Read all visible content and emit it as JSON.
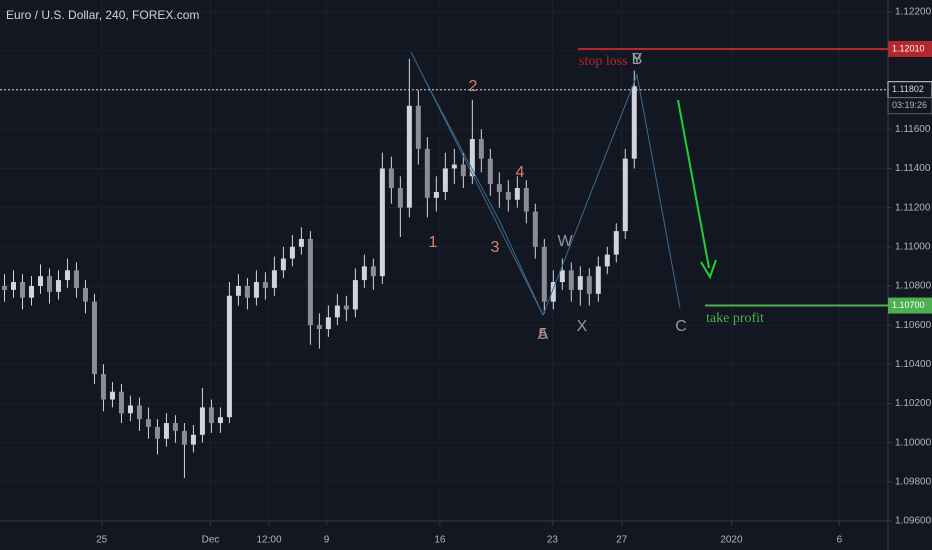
{
  "chart_data": {
    "type": "candlestick",
    "title": "Euro / U.S. Dollar, 240, FOREX.com",
    "color": "#d1d4dc",
    "open": [
      1.108,
      1.1078,
      1.1082,
      1.1074,
      1.108,
      1.1085,
      1.1077,
      1.1083,
      1.1088,
      1.1079,
      1.1072,
      1.1035,
      1.1022,
      1.1026,
      1.1015,
      1.1019,
      1.1012,
      1.1008,
      1.1002,
      1.101,
      1.1006,
      1.0999,
      1.1004,
      1.1018,
      1.101,
      1.1013,
      1.1075,
      1.108,
      1.1074,
      1.1082,
      1.1079,
      1.1088,
      1.1094,
      1.11,
      1.1104,
      1.106,
      1.1058,
      1.1064,
      1.107,
      1.1068,
      1.1083,
      1.109,
      1.1085,
      1.114,
      1.113,
      1.112,
      1.1172,
      1.115,
      1.1125,
      1.1128,
      1.114,
      1.1142,
      1.1136,
      1.1155,
      1.1145,
      1.1132,
      1.1128,
      1.1124,
      1.113,
      1.1118,
      1.11,
      1.1072,
      1.1082,
      1.1088,
      1.1078,
      1.1085,
      1.1076,
      1.109,
      1.1096,
      1.1108,
      1.1145
    ],
    "high": [
      1.1086,
      1.1088,
      1.1086,
      1.1085,
      1.1091,
      1.1089,
      1.1088,
      1.1094,
      1.1092,
      1.1083,
      1.1076,
      1.104,
      1.1031,
      1.103,
      1.1024,
      1.1023,
      1.1018,
      1.1012,
      1.1015,
      1.1014,
      1.101,
      1.1009,
      1.1028,
      1.1022,
      1.1018,
      1.1082,
      1.1086,
      1.1084,
      1.1088,
      1.1087,
      1.1095,
      1.11,
      1.1106,
      1.111,
      1.1108,
      1.1066,
      1.107,
      1.1076,
      1.1075,
      1.1089,
      1.1096,
      1.1094,
      1.1148,
      1.1146,
      1.1136,
      1.1196,
      1.118,
      1.1156,
      1.1136,
      1.1148,
      1.115,
      1.1148,
      1.1175,
      1.116,
      1.115,
      1.1138,
      1.1134,
      1.1136,
      1.1134,
      1.1122,
      1.1104,
      1.1088,
      1.1094,
      1.1092,
      1.109,
      1.1089,
      1.1095,
      1.11,
      1.1112,
      1.115,
      1.119
    ],
    "low": [
      1.1072,
      1.1074,
      1.1068,
      1.107,
      1.1076,
      1.1071,
      1.1073,
      1.1079,
      1.1074,
      1.1066,
      1.103,
      1.1016,
      1.1018,
      1.101,
      1.1011,
      1.1006,
      1.1002,
      1.0994,
      1.0998,
      1.1,
      1.0982,
      1.0995,
      1.1,
      1.1005,
      1.1005,
      1.101,
      1.107,
      1.1068,
      1.107,
      1.1073,
      1.1075,
      1.1084,
      1.109,
      1.1096,
      1.105,
      1.1048,
      1.1054,
      1.106,
      1.1062,
      1.1064,
      1.1079,
      1.1078,
      1.1081,
      1.1122,
      1.1105,
      1.1115,
      1.1142,
      1.1115,
      1.1118,
      1.1124,
      1.1132,
      1.113,
      1.1132,
      1.1138,
      1.1126,
      1.112,
      1.1118,
      1.112,
      1.1112,
      1.1094,
      1.1066,
      1.1068,
      1.1078,
      1.1072,
      1.107,
      1.107,
      1.1072,
      1.1086,
      1.1092,
      1.1104,
      1.114
    ],
    "close": [
      1.1078,
      1.1082,
      1.1074,
      1.108,
      1.1085,
      1.1077,
      1.1083,
      1.1088,
      1.1079,
      1.1072,
      1.1035,
      1.1022,
      1.1026,
      1.1015,
      1.1019,
      1.1012,
      1.1008,
      1.1002,
      1.101,
      1.1006,
      1.0999,
      1.1004,
      1.1018,
      1.101,
      1.1013,
      1.1075,
      1.108,
      1.1074,
      1.1082,
      1.1079,
      1.1088,
      1.1094,
      1.11,
      1.1104,
      1.106,
      1.1058,
      1.1064,
      1.107,
      1.1068,
      1.1083,
      1.109,
      1.1085,
      1.114,
      1.113,
      1.112,
      1.1172,
      1.115,
      1.1125,
      1.1128,
      1.114,
      1.1142,
      1.1136,
      1.1155,
      1.1145,
      1.1132,
      1.1128,
      1.1124,
      1.113,
      1.1118,
      1.11,
      1.1072,
      1.1082,
      1.1088,
      1.1078,
      1.1085,
      1.1076,
      1.109,
      1.1096,
      1.1108,
      1.1145,
      1.1182
    ],
    "xlim": [
      -0.5,
      98.2
    ],
    "xticks": [
      {
        "value": 10.8,
        "label": "25"
      },
      {
        "value": 22.9,
        "label": "Dec"
      },
      {
        "value": 29.4,
        "label": "12:00"
      },
      {
        "value": 35.8,
        "label": "9"
      },
      {
        "value": 48.4,
        "label": "16"
      },
      {
        "value": 60.9,
        "label": "23"
      },
      {
        "value": 68.6,
        "label": "27"
      },
      {
        "value": 80.8,
        "label": "2020"
      },
      {
        "value": 92.8,
        "label": "6"
      }
    ],
    "ylim": [
      1.096,
      1.1226
    ],
    "yticks": [
      {
        "value": 1.122,
        "label": "1.12200"
      },
      {
        "value": 1.12,
        "label": "1.12000"
      },
      {
        "value": 1.118,
        "label": "1.11800"
      },
      {
        "value": 1.116,
        "label": "1.11600"
      },
      {
        "value": 1.114,
        "label": "1.11400"
      },
      {
        "value": 1.112,
        "label": "1.11200"
      },
      {
        "value": 1.11,
        "label": "1.11000"
      },
      {
        "value": 1.108,
        "label": "1.10800"
      },
      {
        "value": 1.106,
        "label": "1.10600"
      },
      {
        "value": 1.104,
        "label": "1.10400"
      },
      {
        "value": 1.102,
        "label": "1.10200"
      },
      {
        "value": 1.1,
        "label": "1.10000"
      },
      {
        "value": 1.098,
        "label": "1.09800"
      },
      {
        "value": 1.096,
        "label": "1.09600"
      }
    ],
    "grid": true,
    "levels": [
      {
        "name": "stop loss",
        "value": 1.1201,
        "label": "1.12010",
        "color": "#b2282e"
      },
      {
        "value": 1.11802,
        "label": "1.11802",
        "countdown": "03:19:26",
        "color": "#d1d4dc"
      },
      {
        "name": "take profit",
        "value": 1.107,
        "label": "1.10700",
        "color": "#4caf50"
      }
    ],
    "annotations": [
      {
        "text": "1",
        "color": "#d9826b"
      },
      {
        "text": "2",
        "color": "#d9826b"
      },
      {
        "text": "3",
        "color": "#d9826b"
      },
      {
        "text": "4",
        "color": "#d9826b"
      },
      {
        "text": "5",
        "color": "#d9826b"
      },
      {
        "text": "A",
        "color": "#9598a1"
      },
      {
        "text": "W",
        "color": "#9598a1"
      },
      {
        "text": "X",
        "color": "#9598a1"
      },
      {
        "text": "B",
        "color": "#9598a1"
      },
      {
        "text": "Y",
        "color": "#9598a1"
      },
      {
        "text": "C",
        "color": "#9598a1"
      }
    ]
  }
}
